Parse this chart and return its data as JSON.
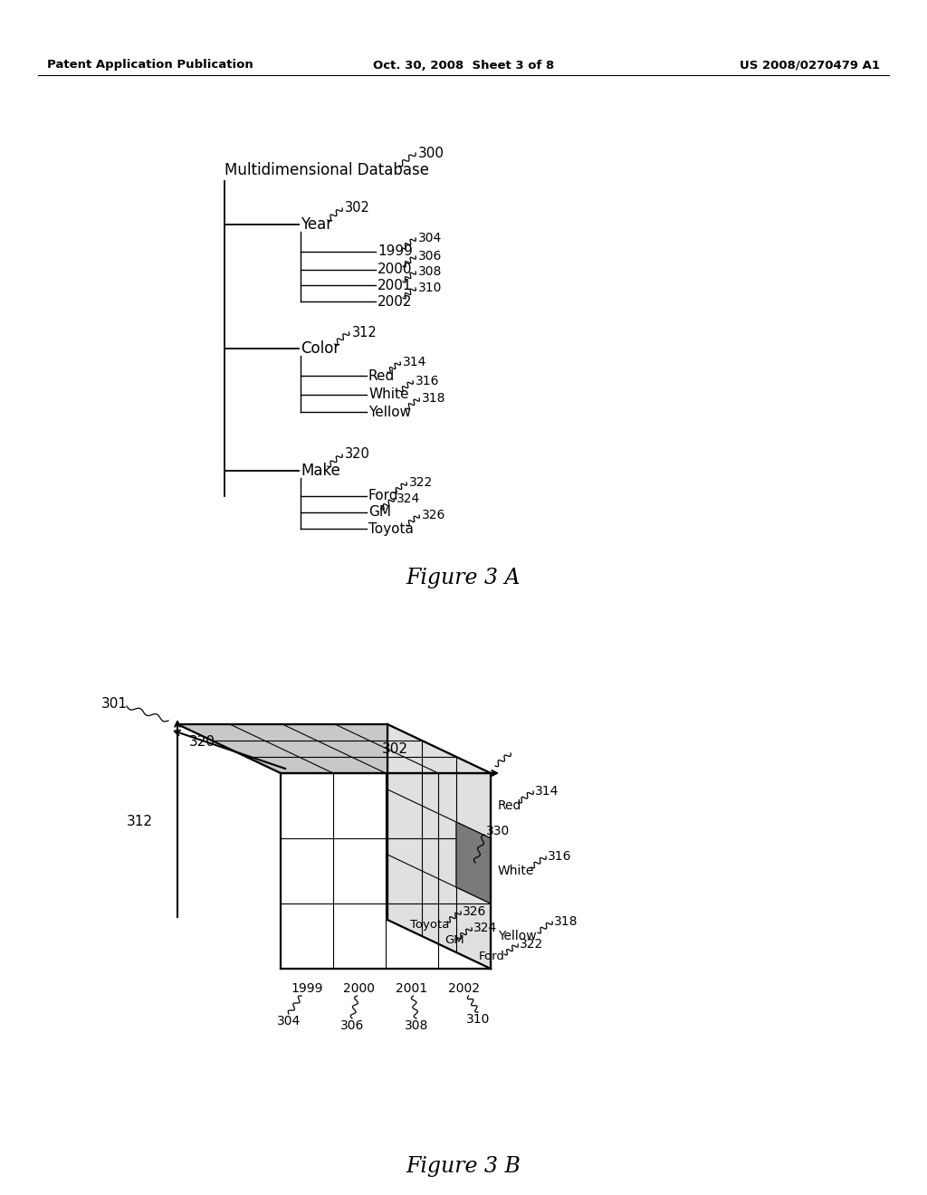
{
  "header_left": "Patent Application Publication",
  "header_center": "Oct. 30, 2008  Sheet 3 of 8",
  "header_right": "US 2008/0270479 A1",
  "fig3a_title": "Figure 3 A",
  "fig3b_title": "Figure 3 B",
  "tree_root": "Multidimensional Database",
  "tree_root_ref": "300",
  "tree_branches": [
    {
      "label": "Year",
      "ref": "302",
      "children": [
        {
          "label": "1999",
          "ref": "304"
        },
        {
          "label": "2000",
          "ref": "306"
        },
        {
          "label": "2001",
          "ref": "308"
        },
        {
          "label": "2002",
          "ref": "310"
        }
      ]
    },
    {
      "label": "Color",
      "ref": "312",
      "children": [
        {
          "label": "Red",
          "ref": "314"
        },
        {
          "label": "White",
          "ref": "316"
        },
        {
          "label": "Yellow",
          "ref": "318"
        }
      ]
    },
    {
      "label": "Make",
      "ref": "320",
      "children": [
        {
          "label": "Ford",
          "ref": "322"
        },
        {
          "label": "GM",
          "ref": "324"
        },
        {
          "label": "Toyota",
          "ref": "326"
        }
      ]
    }
  ],
  "cube_labels": {
    "years": [
      "1999",
      "2000",
      "2001",
      "2002"
    ],
    "year_refs": [
      "304",
      "306",
      "308",
      "310"
    ],
    "colors": [
      "Red",
      "White",
      "Yellow"
    ],
    "color_refs": [
      "314",
      "316",
      "318"
    ],
    "makes": [
      "Ford",
      "GM",
      "Toyota"
    ],
    "make_refs": [
      "322",
      "324",
      "326"
    ],
    "selected_ref": "330",
    "dim302_label": "302",
    "dim312_label": "312",
    "dim320_label": "320",
    "ref301": "301"
  }
}
